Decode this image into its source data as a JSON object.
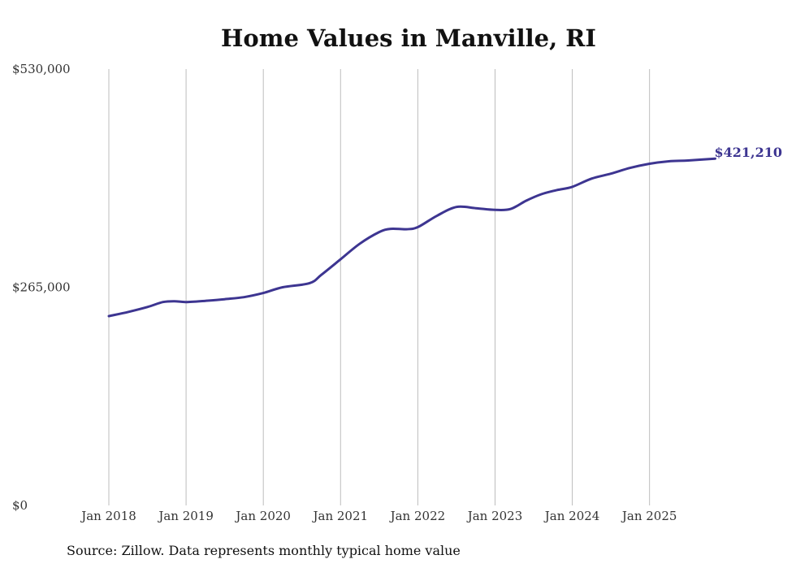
{
  "chart_data": {
    "type": "line",
    "title": "Home Values in Manville, RI",
    "xlabel": "",
    "ylabel": "",
    "ylim": [
      0,
      530000
    ],
    "y_ticks": [
      0,
      265000,
      530000
    ],
    "y_tick_labels": [
      "$0",
      "$265,000",
      "$530,000"
    ],
    "x_ticks": [
      2018,
      2019,
      2020,
      2021,
      2022,
      2023,
      2024,
      2025
    ],
    "x_tick_labels": [
      "Jan 2018",
      "Jan 2019",
      "Jan 2020",
      "Jan 2021",
      "Jan 2022",
      "Jan 2023",
      "Jan 2024",
      "Jan 2025"
    ],
    "xlim": [
      2018,
      2025.95
    ],
    "grid": "vertical",
    "series": [
      {
        "name": "Typical home value",
        "color": "#3d3591",
        "end_label": "$421,210",
        "points": [
          [
            2018.0,
            230000
          ],
          [
            2018.25,
            235000
          ],
          [
            2018.5,
            241000
          ],
          [
            2018.7,
            247000
          ],
          [
            2018.85,
            248000
          ],
          [
            2019.0,
            247000
          ],
          [
            2019.25,
            248500
          ],
          [
            2019.5,
            250500
          ],
          [
            2019.75,
            253000
          ],
          [
            2020.0,
            258000
          ],
          [
            2020.25,
            265000
          ],
          [
            2020.6,
            270000
          ],
          [
            2020.75,
            280000
          ],
          [
            2021.0,
            299000
          ],
          [
            2021.25,
            318000
          ],
          [
            2021.5,
            332000
          ],
          [
            2021.65,
            336000
          ],
          [
            2021.85,
            335500
          ],
          [
            2022.0,
            338000
          ],
          [
            2022.25,
            352000
          ],
          [
            2022.5,
            362500
          ],
          [
            2022.75,
            361000
          ],
          [
            2023.0,
            359000
          ],
          [
            2023.2,
            360000
          ],
          [
            2023.4,
            370000
          ],
          [
            2023.6,
            378000
          ],
          [
            2023.8,
            383000
          ],
          [
            2024.0,
            387000
          ],
          [
            2024.25,
            397000
          ],
          [
            2024.5,
            403000
          ],
          [
            2024.75,
            410000
          ],
          [
            2025.0,
            415000
          ],
          [
            2025.25,
            418000
          ],
          [
            2025.5,
            419000
          ],
          [
            2025.85,
            421210
          ]
        ]
      }
    ]
  },
  "footer": {
    "source": "Source: Zillow. Data represents monthly typical home value"
  }
}
